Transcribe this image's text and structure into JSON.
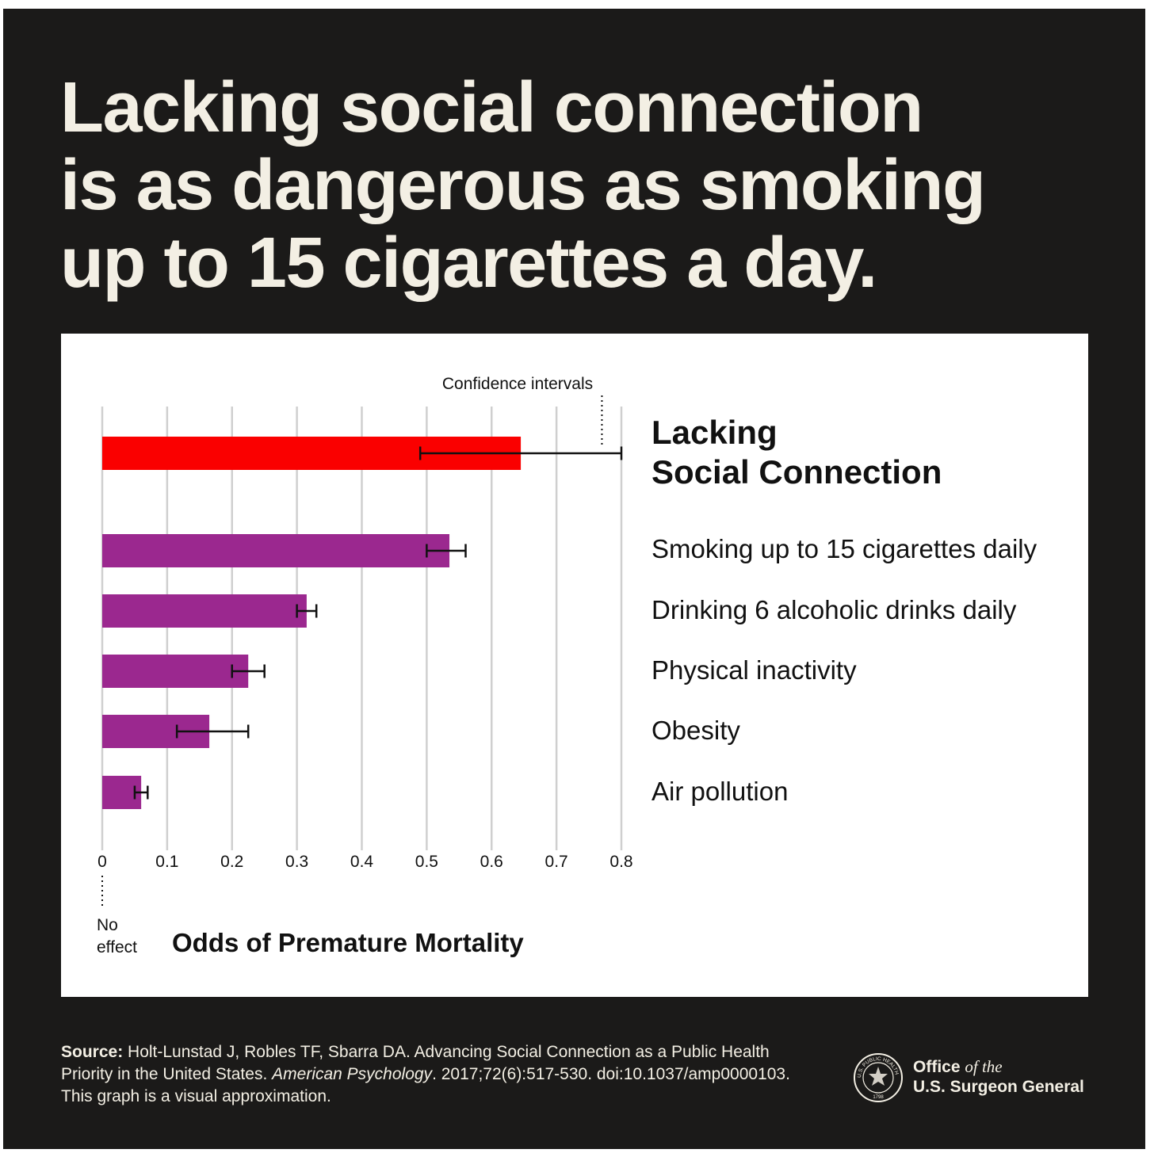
{
  "headline": {
    "line1": "Lacking social connection",
    "line2": "is as dangerous as smoking",
    "line3": "up to 15 cigarettes a day."
  },
  "chart_data": {
    "type": "bar",
    "orientation": "horizontal",
    "xlabel": "Odds of Premature Mortality",
    "xlim": [
      0,
      0.8
    ],
    "xticks": [
      "0",
      "0.1",
      "0.2",
      "0.3",
      "0.4",
      "0.5",
      "0.6",
      "0.7",
      "0.8"
    ],
    "grid": true,
    "annotations": {
      "confidence": "Confidence intervals",
      "no_effect_line1": "No",
      "no_effect_line2": "effect"
    },
    "categories": [
      "Lacking Social Connection",
      "Smoking up to 15 cigarettes daily",
      "Drinking 6 alcoholic drinks daily",
      "Physical inactivity",
      "Obesity",
      "Air pollution"
    ],
    "values": [
      0.645,
      0.535,
      0.315,
      0.225,
      0.165,
      0.06
    ],
    "ci_low": [
      0.49,
      0.5,
      0.3,
      0.2,
      0.115,
      0.05
    ],
    "ci_high": [
      0.8,
      0.56,
      0.33,
      0.25,
      0.225,
      0.07
    ],
    "colors": [
      "#fa0000",
      "#9b288f",
      "#9b288f",
      "#9b288f",
      "#9b288f",
      "#9b288f"
    ]
  },
  "labels": {
    "highlight_line1": "Lacking",
    "highlight_line2": "Social Connection"
  },
  "source": {
    "label": "Source:",
    "text1": "Holt-Lunstad J, Robles TF, Sbarra DA. Advancing Social Connection as a Public Health Priority in the United States.",
    "journal": "American Psychology",
    "text2": ". 2017;72(6):517-530. doi:10.1037/amp0000103. This graph is a visual approximation."
  },
  "logo": {
    "office": "Office",
    "of_the": "of the",
    "org": "U.S. Surgeon General",
    "seal_text_top": "U.S. PUBLIC HEALTH SERVICE",
    "seal_year": "1798"
  }
}
